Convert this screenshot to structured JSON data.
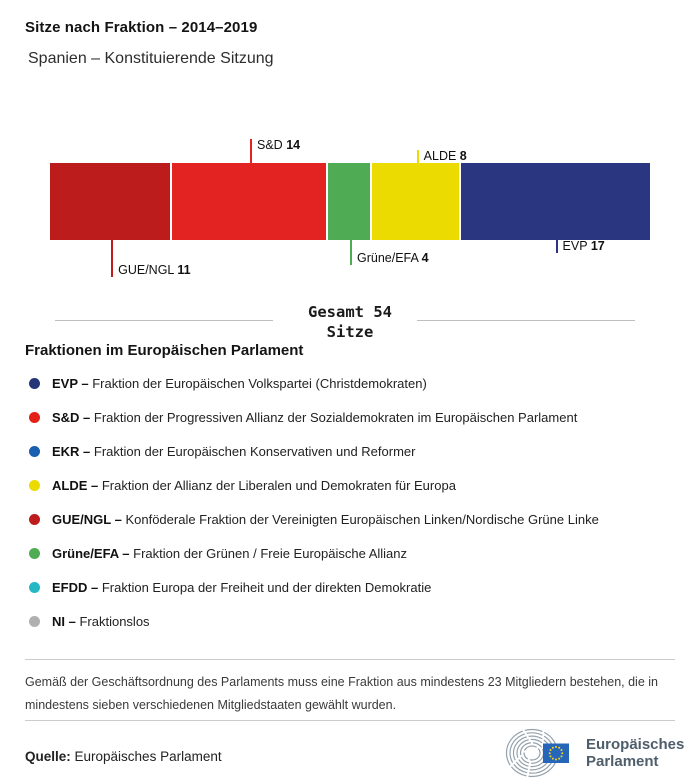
{
  "header": {
    "title": "Sitze nach Fraktion – 2014–2019",
    "subtitle": "Spanien – Konstituierende Sitzung"
  },
  "chart_data": {
    "type": "bar",
    "variant": "horizontal-stacked",
    "title": "Sitze nach Fraktion – 2014–2019",
    "subtitle": "Spanien – Konstituierende Sitzung",
    "total": 54,
    "total_line1": "Gesamt 54",
    "total_line2": "Sitze",
    "segments": [
      {
        "name": "GUE/NGL",
        "value": 11,
        "color": "#bc1c1c",
        "label_side": "below",
        "tick_len": 37
      },
      {
        "name": "S&D",
        "value": 14,
        "color": "#e32322",
        "label_side": "above",
        "tick_len": 24
      },
      {
        "name": "Grüne/EFA",
        "value": 4,
        "color": "#50ab55",
        "label_side": "below",
        "tick_len": 25
      },
      {
        "name": "ALDE",
        "value": 8,
        "color": "#ebdb01",
        "label_side": "above",
        "tick_len": 13
      },
      {
        "name": "EVP",
        "value": 17,
        "color": "#2a3780",
        "label_side": "below",
        "tick_len": 13
      }
    ]
  },
  "legend": {
    "heading": "Fraktionen im Europäischen Parlament",
    "items": [
      {
        "abbr": "EVP –",
        "color": "#263577",
        "description": "Fraktion der Europäischen Volkspartei (Christdemokraten)"
      },
      {
        "abbr": "S&D –",
        "color": "#e32119",
        "description": "Fraktion der Progressiven Allianz der Sozialdemokraten im Europäischen Parlament"
      },
      {
        "abbr": "EKR –",
        "color": "#1a5fb0",
        "description": "Fraktion der Europäischen Konservativen und Reformer"
      },
      {
        "abbr": "ALDE –",
        "color": "#ebdb01",
        "description": "Fraktion der Allianz der Liberalen und Demokraten für Europa"
      },
      {
        "abbr": "GUE/NGL –",
        "color": "#bc1c1c",
        "description": "Konföderale Fraktion der Vereinigten Europäischen Linken/Nordische Grüne Linke"
      },
      {
        "abbr": "Grüne/EFA –",
        "color": "#50ab55",
        "description": "Fraktion der Grünen / Freie Europäische Allianz"
      },
      {
        "abbr": "EFDD –",
        "color": "#24b8c4",
        "description": "Fraktion Europa der Freiheit und der direkten Demokratie"
      },
      {
        "abbr": "NI –",
        "color": "#b0b0b0",
        "description": "Fraktionslos"
      }
    ]
  },
  "footer": {
    "footnote": "Gemäß der Geschäftsordnung des Parlaments muss eine Fraktion aus mindestens 23 Mitgliedern bestehen, die in mindestens sieben verschiedenen Mitgliedstaaten gewählt wurden.",
    "source_label": "Quelle:",
    "source_text": " Europäisches Parlament",
    "logo_line1": "Europäisches",
    "logo_line2": "Parlament"
  }
}
